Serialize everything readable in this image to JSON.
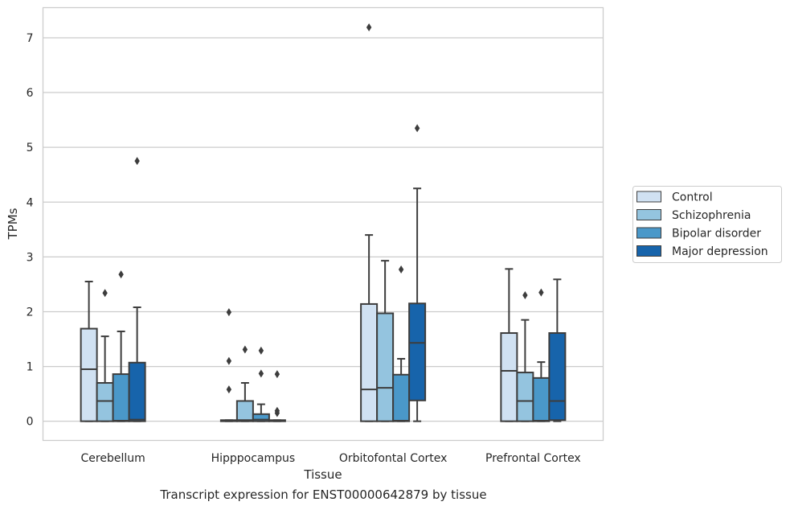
{
  "chart_data": {
    "type": "box",
    "xlabel": "Tissue",
    "ylabel": "TPMs",
    "caption": "Transcript expression for ENST00000642879 by tissue",
    "ylim": [
      -0.35,
      7.55
    ],
    "yticks": [
      0,
      1,
      2,
      3,
      4,
      5,
      6,
      7
    ],
    "grid": "horizontal",
    "legend_position": "right-outside",
    "categories": [
      "Cerebellum",
      "Hipppocampus",
      "Orbitofontal Cortex",
      "Prefrontal Cortex"
    ],
    "series": [
      {
        "name": "Control",
        "color": "#d0e1f2",
        "boxes": [
          {
            "whislo": 0.0,
            "q1": 0.0,
            "med": 0.95,
            "q3": 1.69,
            "whishi": 2.55,
            "fliers": []
          },
          {
            "whislo": 0.0,
            "q1": 0.0,
            "med": 0.01,
            "q3": 0.02,
            "whishi": 0.02,
            "fliers": [
              0.58,
              1.1,
              1.99
            ]
          },
          {
            "whislo": 0.0,
            "q1": 0.0,
            "med": 0.58,
            "q3": 2.14,
            "whishi": 3.4,
            "fliers": [
              7.19
            ]
          },
          {
            "whislo": 0.0,
            "q1": 0.0,
            "med": 0.92,
            "q3": 1.61,
            "whishi": 2.78,
            "fliers": []
          }
        ]
      },
      {
        "name": "Schizophrenia",
        "color": "#94c4df",
        "boxes": [
          {
            "whislo": 0.0,
            "q1": 0.0,
            "med": 0.37,
            "q3": 0.7,
            "whishi": 1.55,
            "fliers": [
              2.34
            ]
          },
          {
            "whislo": 0.0,
            "q1": 0.0,
            "med": 0.02,
            "q3": 0.37,
            "whishi": 0.7,
            "fliers": [
              1.31
            ]
          },
          {
            "whislo": 0.0,
            "q1": 0.0,
            "med": 0.61,
            "q3": 1.97,
            "whishi": 2.93,
            "fliers": []
          },
          {
            "whislo": 0.0,
            "q1": 0.0,
            "med": 0.37,
            "q3": 0.89,
            "whishi": 1.85,
            "fliers": [
              2.3
            ]
          }
        ]
      },
      {
        "name": "Bipolar disorder",
        "color": "#4a98c9",
        "boxes": [
          {
            "whislo": 0.0,
            "q1": 0.0,
            "med": 0.01,
            "q3": 0.86,
            "whishi": 1.64,
            "fliers": [
              2.68
            ]
          },
          {
            "whislo": 0.0,
            "q1": 0.0,
            "med": 0.03,
            "q3": 0.13,
            "whishi": 0.31,
            "fliers": [
              0.87,
              1.29
            ]
          },
          {
            "whislo": 0.0,
            "q1": 0.0,
            "med": 0.01,
            "q3": 0.85,
            "whishi": 1.14,
            "fliers": [
              2.77
            ]
          },
          {
            "whislo": 0.0,
            "q1": 0.0,
            "med": 0.01,
            "q3": 0.79,
            "whishi": 1.08,
            "fliers": [
              2.35
            ]
          }
        ]
      },
      {
        "name": "Major depression",
        "color": "#1764ab",
        "boxes": [
          {
            "whislo": 0.0,
            "q1": 0.0,
            "med": 0.03,
            "q3": 1.07,
            "whishi": 2.08,
            "fliers": [
              4.75
            ]
          },
          {
            "whislo": 0.0,
            "q1": 0.0,
            "med": 0.01,
            "q3": 0.02,
            "whishi": 0.02,
            "fliers": [
              0.15,
              0.19,
              0.86
            ]
          },
          {
            "whislo": 0.0,
            "q1": 0.38,
            "med": 1.43,
            "q3": 2.15,
            "whishi": 4.25,
            "fliers": [
              5.35
            ]
          },
          {
            "whislo": 0.0,
            "q1": 0.02,
            "med": 0.37,
            "q3": 1.61,
            "whishi": 2.59,
            "fliers": []
          }
        ]
      }
    ]
  }
}
